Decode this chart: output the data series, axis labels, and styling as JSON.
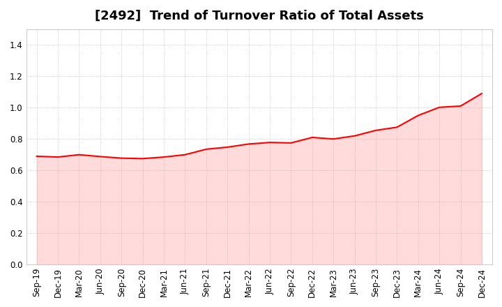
{
  "title": "[2492]  Trend of Turnover Ratio of Total Assets",
  "line_color": "#ff0000",
  "line_width": 1.5,
  "background_color": "#ffffff",
  "grid_color": "#aaaaaa",
  "ylim": [
    0.0,
    1.5
  ],
  "yticks": [
    0.0,
    0.2,
    0.4,
    0.6,
    0.8,
    1.0,
    1.2,
    1.4
  ],
  "x_labels": [
    "Sep-19",
    "Dec-19",
    "Mar-20",
    "Jun-20",
    "Sep-20",
    "Dec-20",
    "Mar-21",
    "Jun-21",
    "Sep-21",
    "Dec-21",
    "Mar-22",
    "Jun-22",
    "Sep-22",
    "Dec-22",
    "Mar-23",
    "Jun-23",
    "Sep-23",
    "Dec-23",
    "Mar-24",
    "Jun-24",
    "Sep-24",
    "Dec-24"
  ],
  "values": [
    0.69,
    0.685,
    0.7,
    0.688,
    0.678,
    0.675,
    0.685,
    0.7,
    0.735,
    0.748,
    0.768,
    0.778,
    0.775,
    0.81,
    0.8,
    0.82,
    0.855,
    0.875,
    0.95,
    1.002,
    1.01,
    1.09
  ],
  "fill_color": "#ff9999",
  "fill_alpha": 0.35,
  "title_fontsize": 13,
  "tick_fontsize": 8.5
}
